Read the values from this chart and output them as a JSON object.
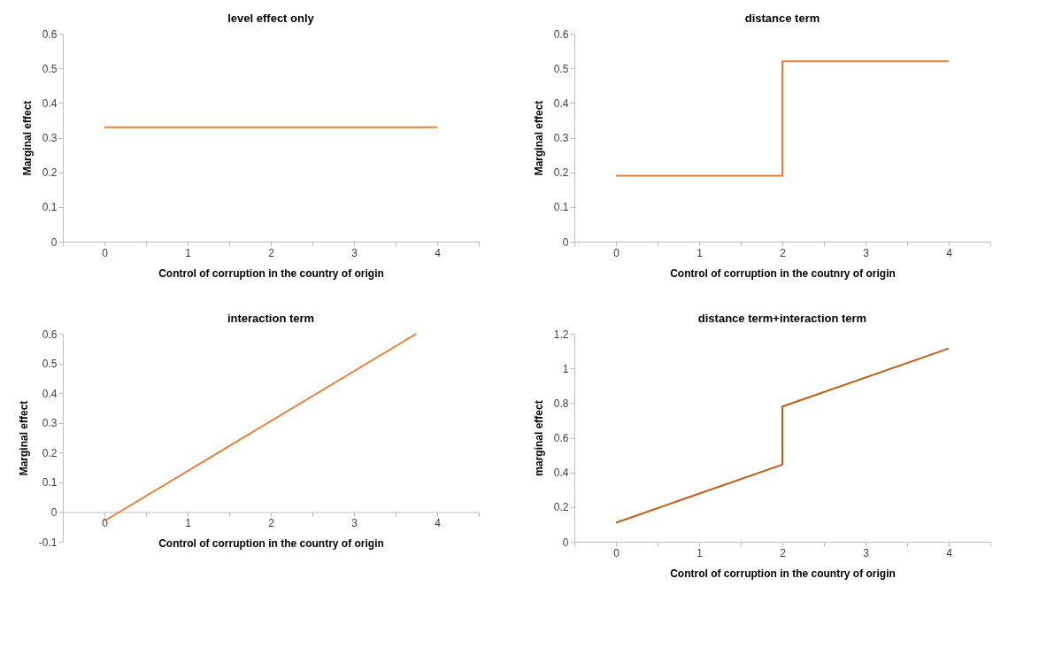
{
  "chart_data": [
    {
      "type": "line",
      "title": "level effect only",
      "xlabel": "Control of corruption in the country of origin",
      "ylabel": "Marginal effect",
      "xlim": [
        -0.5,
        4.5
      ],
      "xticks": [
        {
          "value": -0.5,
          "label": null
        },
        0,
        {
          "value": 0.5,
          "label": null
        },
        1,
        {
          "value": 1.5,
          "label": null
        },
        2,
        {
          "value": 2.5,
          "label": null
        },
        3,
        {
          "value": 3.5,
          "label": null
        },
        4,
        {
          "value": 4.5,
          "label": null
        }
      ],
      "ylim": [
        0,
        0.6
      ],
      "yticks": [
        0,
        0.1,
        0.2,
        0.3,
        0.4,
        0.5,
        0.6
      ],
      "series": [
        {
          "color": "#ed7d31",
          "x": [
            0,
            4
          ],
          "values": [
            0.33,
            0.33
          ]
        }
      ]
    },
    {
      "type": "line",
      "title": "distance term",
      "xlabel": "Control of corruption in the coutnry of origin",
      "ylabel": "Marginal effect",
      "xlim": [
        -0.5,
        4.5
      ],
      "xticks": [
        {
          "value": -0.5,
          "label": null
        },
        0,
        {
          "value": 0.5,
          "label": null
        },
        1,
        {
          "value": 1.5,
          "label": null
        },
        2,
        {
          "value": 2.5,
          "label": null
        },
        3,
        {
          "value": 3.5,
          "label": null
        },
        4,
        {
          "value": 4.5,
          "label": null
        }
      ],
      "ylim": [
        0,
        0.6
      ],
      "yticks": [
        0,
        0.1,
        0.2,
        0.3,
        0.4,
        0.5,
        0.6
      ],
      "series": [
        {
          "color": "#ed7d31",
          "x": [
            0,
            2,
            2,
            4
          ],
          "values": [
            0.19,
            0.19,
            0.52,
            0.52
          ]
        }
      ]
    },
    {
      "type": "line",
      "title": "interaction term",
      "xlabel": "Control of corruption in the country of origin",
      "ylabel": "Marginal effect",
      "xlim": [
        -0.5,
        4.5
      ],
      "xticks": [
        {
          "value": -0.5,
          "label": null
        },
        0,
        {
          "value": 0.5,
          "label": null
        },
        1,
        {
          "value": 1.5,
          "label": null
        },
        2,
        {
          "value": 2.5,
          "label": null
        },
        3,
        {
          "value": 3.5,
          "label": null
        },
        4,
        {
          "value": 4.5,
          "label": null
        }
      ],
      "ylim": [
        -0.1,
        0.6
      ],
      "yticks": [
        -0.1,
        0,
        0.1,
        0.2,
        0.3,
        0.4,
        0.5,
        0.6
      ],
      "series": [
        {
          "color": "#ed7d31",
          "x": [
            0,
            3.75
          ],
          "values": [
            -0.03,
            0.6
          ]
        }
      ]
    },
    {
      "type": "line",
      "title": "distance term+interaction term",
      "xlabel": "Control of corruption in the country of origin",
      "ylabel": "marginal effect",
      "xlim": [
        -0.5,
        4.5
      ],
      "xticks": [
        {
          "value": -0.5,
          "label": null
        },
        0,
        {
          "value": 0.5,
          "label": null
        },
        1,
        {
          "value": 1.5,
          "label": null
        },
        2,
        {
          "value": 2.5,
          "label": null
        },
        3,
        {
          "value": 3.5,
          "label": null
        },
        4,
        {
          "value": 4.5,
          "label": null
        }
      ],
      "ylim": [
        0,
        1.2
      ],
      "yticks": [
        0,
        0.2,
        0.4,
        0.6,
        0.8,
        1,
        1.2
      ],
      "series": [
        {
          "color": "#c55a11",
          "x": [
            0,
            2,
            2,
            4
          ],
          "values": [
            0.11,
            0.445,
            0.78,
            1.115
          ]
        }
      ]
    }
  ]
}
